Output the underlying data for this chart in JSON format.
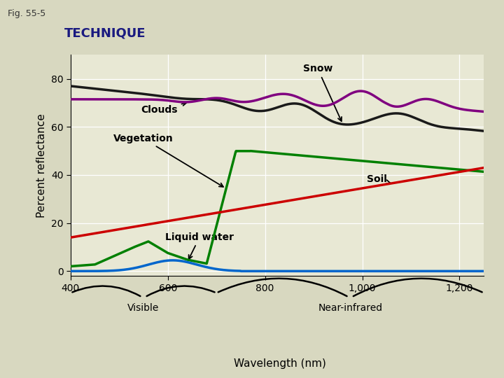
{
  "title": "TECHNIQUE",
  "fig_label": "Fig. 55-5",
  "ylabel": "Percent reflectance",
  "xlabel": "Wavelength (nm)",
  "xlim": [
    400,
    1250
  ],
  "ylim": [
    -2,
    90
  ],
  "yticks": [
    0,
    20,
    40,
    60,
    80
  ],
  "xticks": [
    400,
    600,
    800,
    1000,
    1200
  ],
  "xtick_labels": [
    "400",
    "600",
    "800",
    "1,000",
    "1,200"
  ],
  "bg_color": "#d8d8c0",
  "plot_bg_color": "#e8e8d4",
  "title_bg_color": "#f0a800",
  "title_text_color": "#1a1a80",
  "snow_color": "#1a1a1a",
  "clouds_color": "#800080",
  "vegetation_color": "#008000",
  "soil_color": "#cc0000",
  "water_color": "#0066cc",
  "annotation_fontsize": 10,
  "axis_label_fontsize": 11,
  "tick_fontsize": 10
}
